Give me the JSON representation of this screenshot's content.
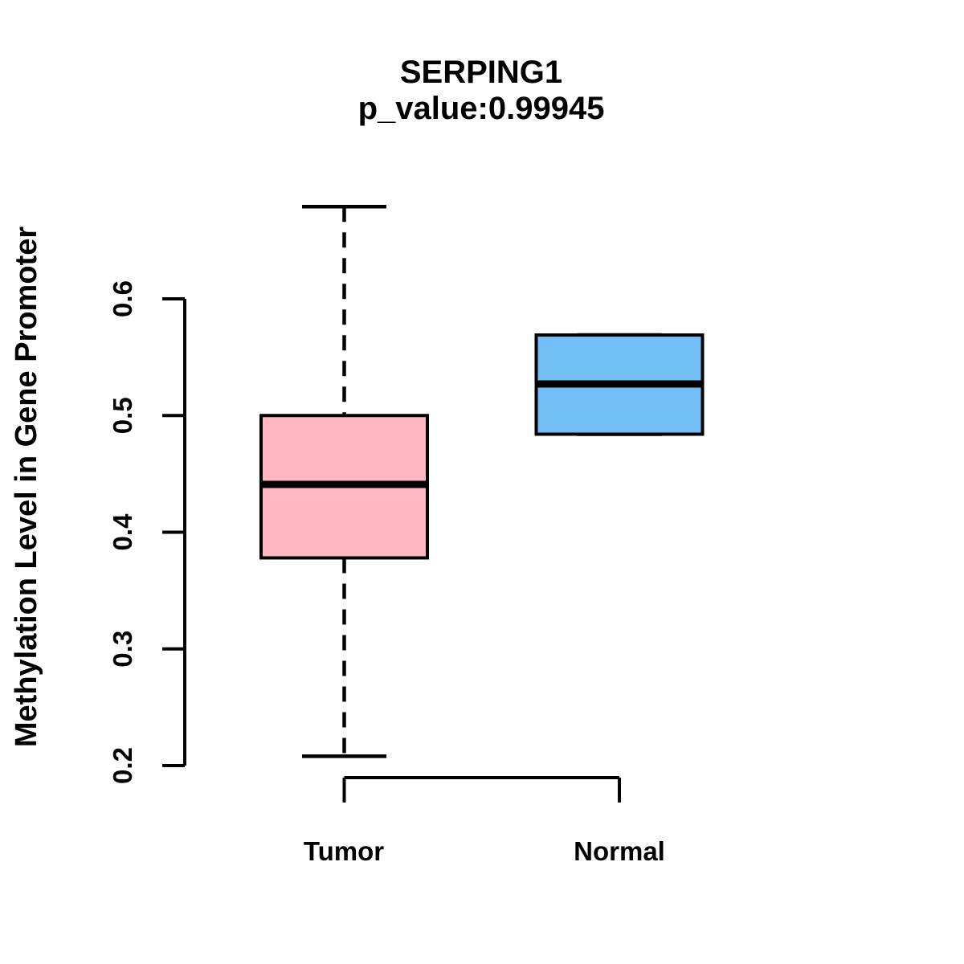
{
  "title": {
    "line1": "SERPING1",
    "line2": "p_value:0.99945"
  },
  "colors": {
    "background": "#FFFFFF",
    "stroke": "#000000",
    "tumor_fill": "#FFB6C1",
    "normal_fill": "#74BEF6"
  },
  "chart_data": {
    "type": "boxplot",
    "title": "SERPING1",
    "subtitle": "p_value:0.99945",
    "p_value": 0.99945,
    "xlabel": "",
    "ylabel": "Methylation Level in Gene Promoter",
    "categories": [
      "Tumor",
      "Normal"
    ],
    "y_axis": {
      "ticks": [
        0.2,
        0.3,
        0.4,
        0.5,
        0.6
      ],
      "tick_labels": [
        "0.2",
        "0.3",
        "0.4",
        "0.5",
        "0.6"
      ],
      "range_shown": [
        0.17,
        0.7
      ]
    },
    "grid": false,
    "legend": false,
    "series": [
      {
        "name": "Tumor",
        "fill": "#FFB6C1",
        "whisker_low": 0.208,
        "q1": 0.378,
        "median": 0.441,
        "q3": 0.5,
        "whisker_high": 0.679,
        "whisker_style": "dashed"
      },
      {
        "name": "Normal",
        "fill": "#74BEF6",
        "whisker_low": 0.484,
        "q1": 0.484,
        "median": 0.527,
        "q3": 0.569,
        "whisker_high": 0.569,
        "whisker_style": "dashed"
      }
    ]
  }
}
